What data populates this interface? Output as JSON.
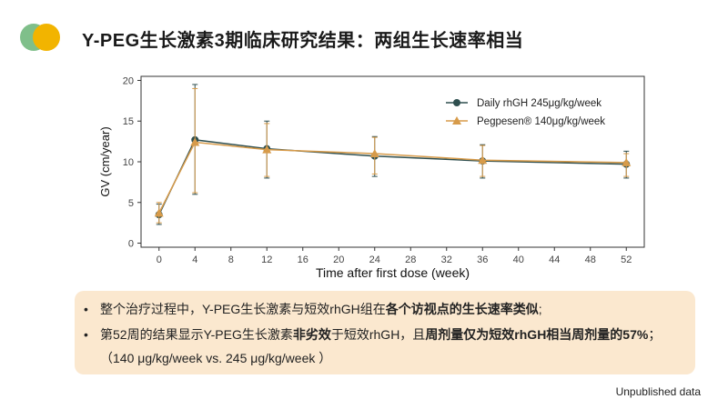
{
  "header": {
    "title": "Y-PEG生长激素3期临床研究结果：两组生长速率相当"
  },
  "chart_data": {
    "type": "line",
    "xlabel": "Time after first dose (week)",
    "ylabel": "GV (cm/year)",
    "xlim": [
      -2,
      54
    ],
    "ylim": [
      -0.5,
      20.5
    ],
    "x_ticks": [
      0,
      4,
      8,
      12,
      16,
      20,
      24,
      28,
      32,
      36,
      40,
      44,
      48,
      52
    ],
    "y_ticks": [
      0,
      5,
      10,
      15,
      20
    ],
    "x": [
      0,
      4,
      12,
      24,
      36,
      52
    ],
    "legend_position": "top-right",
    "series": [
      {
        "name": "Daily rhGH  245μg/kg/week",
        "color": "#2f4f4f",
        "marker": "circle",
        "values": [
          3.5,
          12.7,
          11.6,
          10.7,
          10.1,
          9.7
        ],
        "error": [
          [
            2.3,
            4.8
          ],
          [
            6.0,
            19.5
          ],
          [
            8.0,
            15.0
          ],
          [
            8.2,
            13.1
          ],
          [
            8.0,
            12.1
          ],
          [
            8.0,
            11.3
          ]
        ]
      },
      {
        "name": "Pegpesen® 140μg/kg/week",
        "color": "#d79b4a",
        "marker": "triangle",
        "values": [
          3.7,
          12.4,
          11.5,
          11.0,
          10.2,
          9.9
        ],
        "error": [
          [
            2.5,
            5.0
          ],
          [
            6.2,
            19.0
          ],
          [
            8.2,
            14.7
          ],
          [
            8.5,
            13.0
          ],
          [
            8.2,
            12.0
          ],
          [
            8.2,
            11.0
          ]
        ]
      }
    ]
  },
  "bullets": {
    "b1_pre": "整个治疗过程中，Y-PEG生长激素与短效rhGH组在",
    "b1_bold": "各个访视点的生长速率类似",
    "b1_post": ";",
    "b2_pre": "第52周的结果显示Y-PEG生长激素",
    "b2_bold1": "非劣效",
    "b2_mid": "于短效rhGH，且",
    "b2_bold2": "周剂量仅为短效rhGH相当周剂量的57%",
    "b2_post": "；",
    "b3": "（140 μg/kg/week vs. 245 μg/kg/week ）"
  },
  "footer": {
    "note": "Unpublished data"
  }
}
